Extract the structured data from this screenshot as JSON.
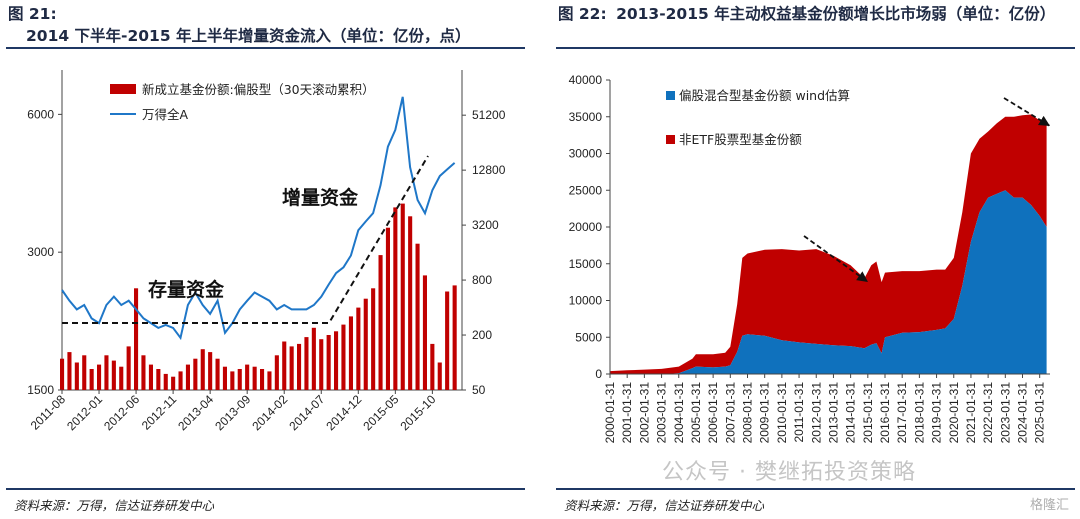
{
  "watermark": "公众号 · 樊继拓投资策略",
  "watermark_logo": "格隆汇",
  "colors": {
    "red": "#c00000",
    "blue": "#1f77c8",
    "fill_blue": "#0f71bd",
    "title": "#1f2a44"
  },
  "chart_data": [
    {
      "type": "bar",
      "figure_label": "图 21:",
      "title": "2014 下半年-2015 年上半年增量资金流入（单位：亿份，点）",
      "source": "资料来源：万得，信达证券研发中心",
      "x_tick_labels": [
        "2011-08",
        "2012-01",
        "2012-06",
        "2012-11",
        "2013-04",
        "2013-09",
        "2014-02",
        "2014-07",
        "2014-12",
        "2015-05",
        "2015-10"
      ],
      "x_range": [
        "2011-08",
        "2016-02"
      ],
      "left_axis": {
        "ticks": [
          1500,
          3000,
          6000
        ],
        "log": true,
        "range": [
          1500,
          7500
        ]
      },
      "right_axis": {
        "ticks": [
          50,
          200,
          800,
          3200,
          12800,
          51200
        ],
        "log": true,
        "range": [
          50,
          160000
        ]
      },
      "legend": [
        {
          "label": "新成立基金份额:偏股型（30天滚动累积）",
          "kind": "bar",
          "color": "#c00000"
        },
        {
          "label": "万得全A",
          "kind": "line",
          "color": "#1f77c8"
        }
      ],
      "annotations": [
        "存量资金",
        "增量资金"
      ],
      "series": [
        {
          "name": "万得全A",
          "kind": "line",
          "axis": "left",
          "points": [
            [
              "2011-08",
              2480
            ],
            [
              "2011-09",
              2350
            ],
            [
              "2011-10",
              2250
            ],
            [
              "2011-11",
              2300
            ],
            [
              "2011-12",
              2150
            ],
            [
              "2012-01",
              2100
            ],
            [
              "2012-02",
              2300
            ],
            [
              "2012-03",
              2400
            ],
            [
              "2012-04",
              2300
            ],
            [
              "2012-05",
              2350
            ],
            [
              "2012-06",
              2250
            ],
            [
              "2012-07",
              2150
            ],
            [
              "2012-08",
              2100
            ],
            [
              "2012-09",
              2050
            ],
            [
              "2012-10",
              2080
            ],
            [
              "2012-11",
              2050
            ],
            [
              "2012-12",
              1950
            ],
            [
              "2013-01",
              2300
            ],
            [
              "2013-02",
              2450
            ],
            [
              "2013-03",
              2300
            ],
            [
              "2013-04",
              2200
            ],
            [
              "2013-05",
              2350
            ],
            [
              "2013-06",
              2000
            ],
            [
              "2013-07",
              2100
            ],
            [
              "2013-08",
              2250
            ],
            [
              "2013-09",
              2350
            ],
            [
              "2013-10",
              2450
            ],
            [
              "2013-11",
              2400
            ],
            [
              "2013-12",
              2350
            ],
            [
              "2014-01",
              2250
            ],
            [
              "2014-02",
              2300
            ],
            [
              "2014-03",
              2250
            ],
            [
              "2014-04",
              2250
            ],
            [
              "2014-05",
              2250
            ],
            [
              "2014-06",
              2300
            ],
            [
              "2014-07",
              2400
            ],
            [
              "2014-08",
              2550
            ],
            [
              "2014-09",
              2700
            ],
            [
              "2014-10",
              2780
            ],
            [
              "2014-11",
              2950
            ],
            [
              "2014-12",
              3350
            ],
            [
              "2015-01",
              3500
            ],
            [
              "2015-02",
              3650
            ],
            [
              "2015-03",
              4200
            ],
            [
              "2015-04",
              5100
            ],
            [
              "2015-05",
              5550
            ],
            [
              "2015-06",
              6550
            ],
            [
              "2015-07",
              4600
            ],
            [
              "2015-08",
              3900
            ],
            [
              "2015-09",
              3650
            ],
            [
              "2015-10",
              4100
            ],
            [
              "2015-11",
              4400
            ],
            [
              "2015-12",
              4550
            ],
            [
              "2016-01",
              4700
            ]
          ]
        },
        {
          "name": "新成立基金份额:偏股型（30天滚动累积）",
          "kind": "bar",
          "axis": "right",
          "points": [
            [
              "2011-08",
              110
            ],
            [
              "2011-09",
              130
            ],
            [
              "2011-10",
              100
            ],
            [
              "2011-11",
              120
            ],
            [
              "2011-12",
              85
            ],
            [
              "2012-01",
              95
            ],
            [
              "2012-02",
              120
            ],
            [
              "2012-03",
              105
            ],
            [
              "2012-04",
              90
            ],
            [
              "2012-05",
              150
            ],
            [
              "2012-06",
              650
            ],
            [
              "2012-07",
              120
            ],
            [
              "2012-08",
              95
            ],
            [
              "2012-09",
              85
            ],
            [
              "2012-10",
              75
            ],
            [
              "2012-11",
              70
            ],
            [
              "2012-12",
              80
            ],
            [
              "2013-01",
              95
            ],
            [
              "2013-02",
              110
            ],
            [
              "2013-03",
              140
            ],
            [
              "2013-04",
              130
            ],
            [
              "2013-05",
              110
            ],
            [
              "2013-06",
              90
            ],
            [
              "2013-07",
              80
            ],
            [
              "2013-08",
              85
            ],
            [
              "2013-09",
              95
            ],
            [
              "2013-10",
              90
            ],
            [
              "2013-11",
              85
            ],
            [
              "2013-12",
              80
            ],
            [
              "2014-01",
              120
            ],
            [
              "2014-02",
              170
            ],
            [
              "2014-03",
              150
            ],
            [
              "2014-04",
              160
            ],
            [
              "2014-05",
              190
            ],
            [
              "2014-06",
              240
            ],
            [
              "2014-07",
              180
            ],
            [
              "2014-08",
              200
            ],
            [
              "2014-09",
              220
            ],
            [
              "2014-10",
              260
            ],
            [
              "2014-11",
              320
            ],
            [
              "2014-12",
              400
            ],
            [
              "2015-01",
              500
            ],
            [
              "2015-02",
              650
            ],
            [
              "2015-03",
              1500
            ],
            [
              "2015-04",
              3000
            ],
            [
              "2015-05",
              5000
            ],
            [
              "2015-06",
              5500
            ],
            [
              "2015-07",
              4000
            ],
            [
              "2015-08",
              2000
            ],
            [
              "2015-09",
              900
            ],
            [
              "2015-10",
              160
            ],
            [
              "2015-11",
              100
            ],
            [
              "2015-12",
              600
            ],
            [
              "2016-01",
              700
            ]
          ]
        }
      ]
    },
    {
      "type": "area",
      "figure_label": "图 22:",
      "title": "2013-2015 年主动权益基金份额增长比市场弱（单位：亿份）",
      "source": "资料来源：万得，信达证券研发中心",
      "stacked": true,
      "y_ticks": [
        0,
        5000,
        10000,
        15000,
        20000,
        25000,
        30000,
        35000,
        40000
      ],
      "ylim": [
        0,
        40000
      ],
      "x_tick_labels": [
        "2000-01-31",
        "2001-01-31",
        "2002-01-31",
        "2003-01-31",
        "2004-01-31",
        "2005-01-31",
        "2006-01-31",
        "2007-01-31",
        "2008-01-31",
        "2009-01-31",
        "2010-01-31",
        "2011-01-31",
        "2012-01-31",
        "2013-01-31",
        "2014-01-31",
        "2015-01-31",
        "2016-01-31",
        "2017-01-31",
        "2018-01-31",
        "2019-01-31",
        "2020-01-31",
        "2021-01-31",
        "2022-01-31",
        "2023-01-31",
        "2024-01-31",
        "2025-01-31"
      ],
      "legend": [
        {
          "label": "偏股混合型基金份额 wind估算",
          "color": "#0f71bd"
        },
        {
          "label": "非ETF股票型基金份额",
          "color": "#c00000"
        }
      ],
      "x": [
        2000.0,
        2001.0,
        2002.0,
        2003.0,
        2004.0,
        2004.8,
        2005.0,
        2006.0,
        2006.7,
        2007.0,
        2007.4,
        2007.7,
        2008.0,
        2009.0,
        2010.0,
        2011.0,
        2012.0,
        2013.0,
        2014.0,
        2014.8,
        2015.2,
        2015.5,
        2015.8,
        2016.0,
        2017.0,
        2018.0,
        2019.0,
        2019.5,
        2020.0,
        2020.5,
        2021.0,
        2021.5,
        2022.0,
        2022.5,
        2023.0,
        2023.5,
        2024.0,
        2024.5,
        2025.0,
        2025.4
      ],
      "series": [
        {
          "name": "偏股混合型基金份额 wind估算",
          "values": [
            0,
            0,
            0,
            0,
            100,
            800,
            1000,
            900,
            1000,
            1200,
            3000,
            5200,
            5400,
            5200,
            4600,
            4300,
            4100,
            3900,
            3800,
            3500,
            4000,
            4200,
            2800,
            5000,
            5600,
            5700,
            6000,
            6200,
            7500,
            12000,
            18000,
            22000,
            24000,
            24500,
            25000,
            24000,
            24000,
            23000,
            21500,
            20000
          ]
        },
        {
          "name": "非ETF股票型基金份额",
          "values": [
            400,
            500,
            600,
            700,
            900,
            1300,
            1700,
            1800,
            1900,
            2500,
            6500,
            10600,
            11000,
            11700,
            12400,
            12500,
            12900,
            12200,
            11000,
            9500,
            10800,
            11100,
            9700,
            8800,
            8400,
            8300,
            8200,
            8000,
            8300,
            10000,
            12000,
            10000,
            9000,
            9600,
            10000,
            11000,
            11200,
            12300,
            13000,
            14000
          ]
        }
      ],
      "annotations": [
        "2011-2015 decline arrow",
        "2023-2025 decline arrow"
      ]
    }
  ]
}
